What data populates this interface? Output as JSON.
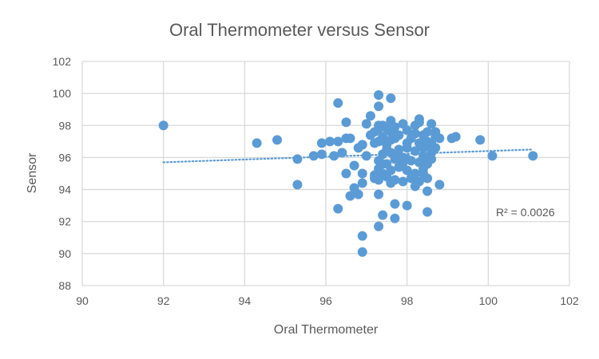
{
  "chart_data": {
    "type": "scatter",
    "title": "Oral Thermometer versus Sensor",
    "xlabel": "Oral Thermometer",
    "ylabel": "Sensor",
    "xlim": [
      90,
      102
    ],
    "ylim": [
      88,
      102
    ],
    "xticks": [
      90,
      92,
      94,
      96,
      98,
      100,
      102
    ],
    "yticks": [
      88,
      90,
      92,
      94,
      96,
      98,
      100,
      102
    ],
    "grid": true,
    "legend": "none",
    "marker_color": "#5b9bd5",
    "trendline": {
      "type": "linear",
      "style": "dotted",
      "x": [
        92.0,
        101.1
      ],
      "y": [
        95.7,
        96.5
      ],
      "annotation": "R² = 0.0026"
    },
    "points": [
      [
        92.0,
        98.0
      ],
      [
        94.3,
        96.9
      ],
      [
        94.8,
        97.1
      ],
      [
        95.3,
        95.9
      ],
      [
        95.3,
        94.3
      ],
      [
        95.7,
        96.1
      ],
      [
        95.9,
        96.9
      ],
      [
        95.9,
        96.2
      ],
      [
        96.1,
        97.0
      ],
      [
        96.2,
        96.1
      ],
      [
        96.3,
        99.4
      ],
      [
        96.3,
        92.8
      ],
      [
        96.3,
        97.0
      ],
      [
        96.4,
        96.3
      ],
      [
        96.5,
        97.2
      ],
      [
        96.5,
        95.0
      ],
      [
        96.5,
        98.2
      ],
      [
        96.6,
        97.2
      ],
      [
        96.6,
        93.6
      ],
      [
        96.7,
        94.1
      ],
      [
        96.7,
        95.5
      ],
      [
        96.8,
        96.6
      ],
      [
        96.8,
        93.7
      ],
      [
        96.9,
        96.8
      ],
      [
        96.9,
        91.1
      ],
      [
        96.9,
        90.1
      ],
      [
        96.9,
        95.0
      ],
      [
        96.9,
        94.4
      ],
      [
        97.0,
        96.1
      ],
      [
        97.0,
        98.1
      ],
      [
        97.1,
        98.6
      ],
      [
        97.1,
        97.4
      ],
      [
        97.2,
        94.7
      ],
      [
        97.2,
        96.9
      ],
      [
        97.3,
        98.0
      ],
      [
        97.3,
        99.9
      ],
      [
        97.3,
        99.2
      ],
      [
        97.3,
        93.7
      ],
      [
        97.3,
        91.7
      ],
      [
        97.4,
        92.4
      ],
      [
        97.6,
        99.7
      ],
      [
        97.6,
        98.3
      ],
      [
        97.7,
        93.1
      ],
      [
        97.7,
        92.2
      ],
      [
        98.0,
        93.0
      ],
      [
        98.5,
        94.7
      ],
      [
        98.5,
        92.6
      ],
      [
        98.5,
        93.9
      ],
      [
        98.8,
        94.3
      ],
      [
        99.8,
        97.1
      ],
      [
        100.1,
        96.1
      ],
      [
        101.1,
        96.1
      ],
      [
        99.1,
        97.2
      ],
      [
        99.2,
        97.3
      ],
      [
        97.4,
        98.0
      ],
      [
        97.5,
        97.8
      ],
      [
        97.6,
        97.6
      ],
      [
        97.7,
        97.9
      ],
      [
        97.9,
        98.1
      ],
      [
        98.0,
        97.7
      ],
      [
        98.3,
        98.4
      ],
      [
        98.3,
        98.2
      ],
      [
        98.6,
        98.1
      ],
      [
        98.5,
        97.6
      ],
      [
        98.7,
        97.6
      ],
      [
        98.7,
        97.3
      ],
      [
        98.4,
        97.4
      ],
      [
        98.2,
        97.5
      ],
      [
        97.4,
        97.3
      ],
      [
        97.3,
        97.0
      ],
      [
        97.5,
        96.8
      ],
      [
        97.6,
        97.1
      ],
      [
        97.8,
        97.4
      ],
      [
        98.1,
        97.2
      ],
      [
        98.6,
        96.9
      ],
      [
        98.7,
        96.6
      ],
      [
        98.6,
        96.3
      ],
      [
        98.4,
        96.6
      ],
      [
        98.2,
        96.4
      ],
      [
        98.0,
        96.6
      ],
      [
        97.8,
        96.5
      ],
      [
        97.6,
        96.3
      ],
      [
        97.4,
        96.2
      ],
      [
        97.3,
        95.8
      ],
      [
        97.5,
        95.6
      ],
      [
        97.7,
        95.9
      ],
      [
        97.9,
        96.0
      ],
      [
        98.1,
        95.8
      ],
      [
        98.3,
        95.7
      ],
      [
        98.5,
        95.6
      ],
      [
        98.6,
        95.9
      ],
      [
        98.4,
        96.1
      ],
      [
        97.3,
        95.3
      ],
      [
        97.4,
        95.0
      ],
      [
        97.6,
        95.2
      ],
      [
        97.8,
        95.4
      ],
      [
        98.0,
        95.2
      ],
      [
        98.2,
        95.0
      ],
      [
        98.4,
        95.3
      ],
      [
        97.5,
        94.8
      ],
      [
        97.7,
        94.6
      ],
      [
        97.9,
        94.5
      ],
      [
        98.1,
        94.7
      ],
      [
        98.3,
        94.5
      ],
      [
        97.3,
        94.6
      ],
      [
        97.2,
        94.9
      ],
      [
        98.2,
        94.2
      ],
      [
        97.9,
        95.7
      ],
      [
        98.0,
        96.9
      ],
      [
        97.7,
        97.2
      ],
      [
        97.5,
        96.5
      ],
      [
        98.8,
        97.2
      ],
      [
        98.5,
        97.0
      ],
      [
        98.4,
        95.0
      ],
      [
        97.6,
        94.4
      ],
      [
        98.6,
        96.5
      ],
      [
        97.2,
        97.6
      ],
      [
        97.3,
        97.8
      ],
      [
        98.2,
        98.0
      ],
      [
        98.5,
        96.0
      ],
      [
        98.3,
        96.9
      ],
      [
        97.8,
        96.1
      ],
      [
        98.0,
        95.9
      ],
      [
        97.4,
        95.6
      ]
    ]
  }
}
